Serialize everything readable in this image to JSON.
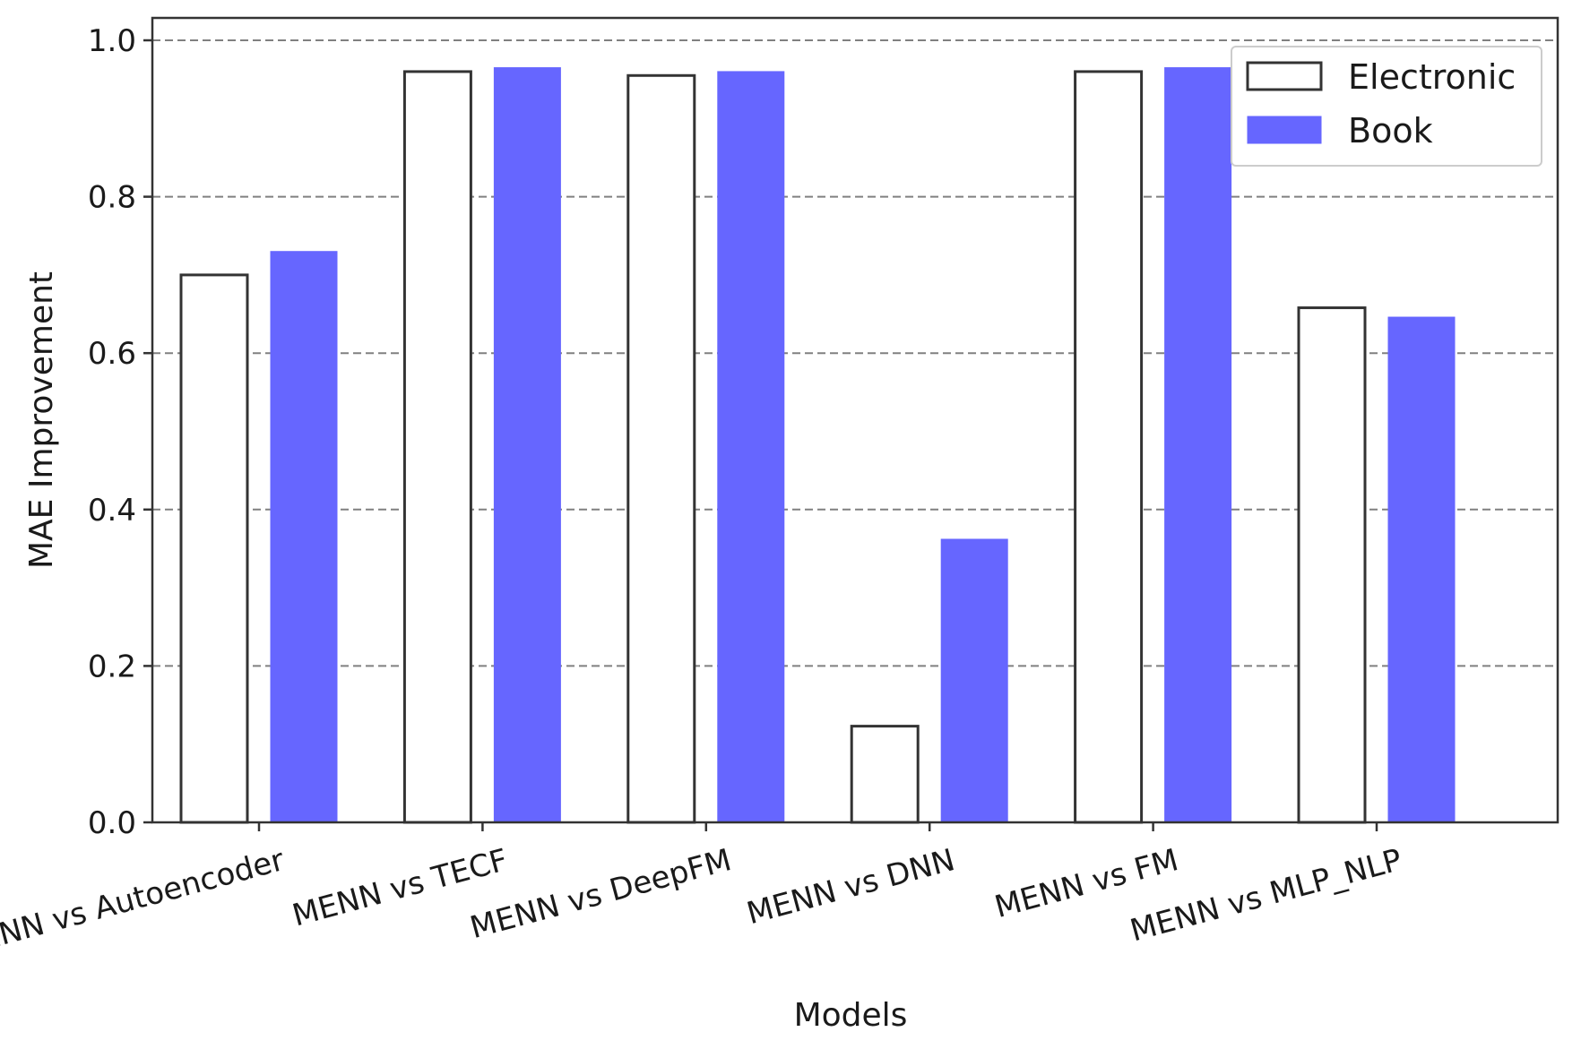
{
  "chart_data": {
    "type": "bar",
    "categories": [
      "MENN vs Autoencoder",
      "MENN vs TECF",
      "MENN vs DeepFM",
      "MENN vs DNN",
      "MENN vs FM",
      "MENN vs MLP_NLP"
    ],
    "series": [
      {
        "name": "Electronic",
        "values": [
          0.7,
          0.96,
          0.955,
          0.123,
          0.96,
          0.658
        ],
        "color": "#ffffff",
        "edge_color": "#333333"
      },
      {
        "name": "Book",
        "values": [
          0.73,
          0.965,
          0.96,
          0.362,
          0.965,
          0.646
        ],
        "color": "#6666ff",
        "edge_color": "#6666ff"
      }
    ],
    "xlabel": "Models",
    "ylabel": "MAE Improvement",
    "ylim": [
      0,
      1.0
    ],
    "yticks": [
      "0.0",
      "0.2",
      "0.4",
      "0.6",
      "0.8",
      "1.0"
    ],
    "ytick_values": [
      0.0,
      0.2,
      0.4,
      0.6,
      0.8,
      1.0
    ],
    "grid": "y-dashed",
    "legend_position": "top-right"
  }
}
